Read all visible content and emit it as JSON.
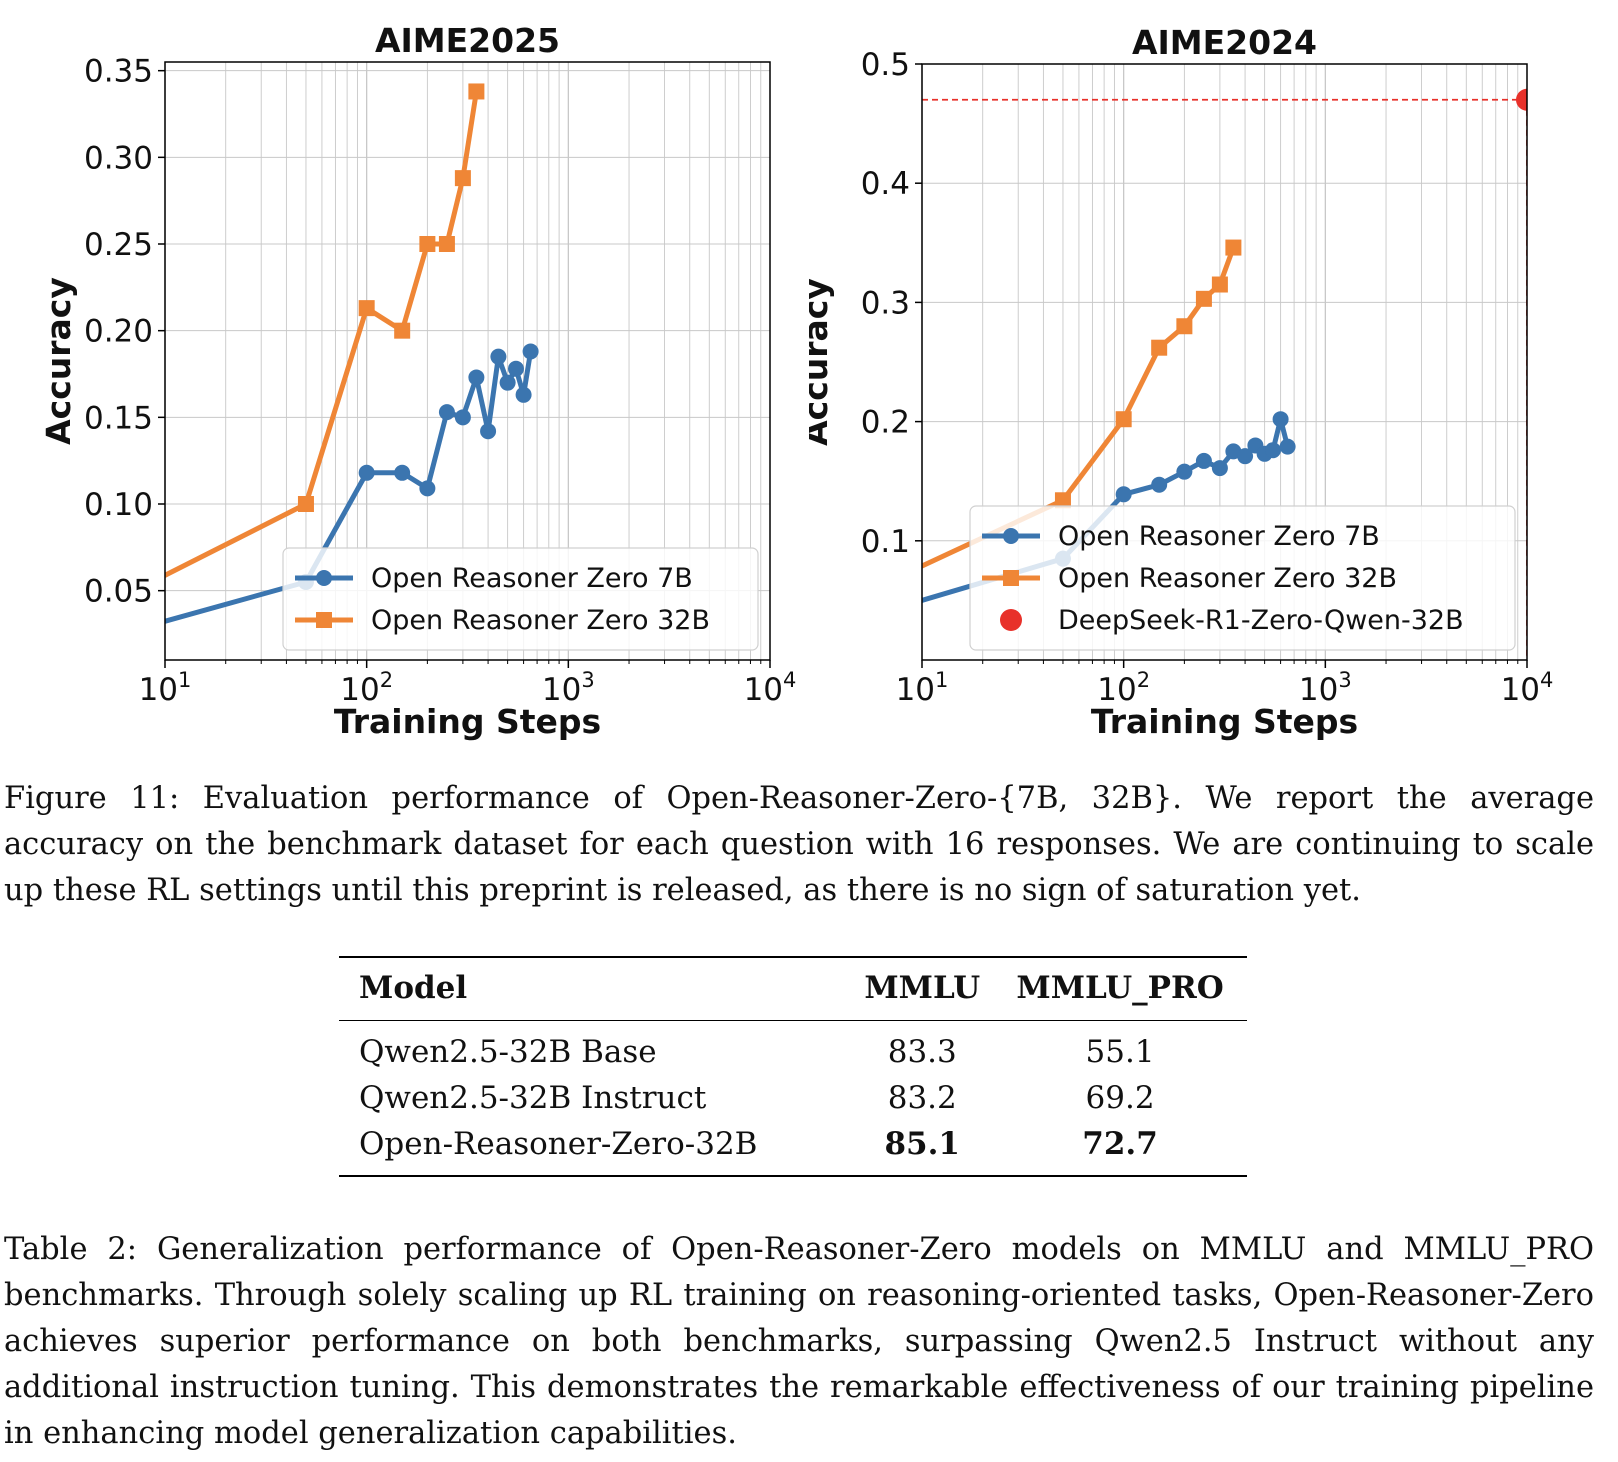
{
  "chart_data": [
    {
      "type": "line",
      "title": "AIME2025",
      "xlabel": "Training Steps",
      "ylabel": "Accuracy",
      "xscale": "log",
      "xlim": [
        10,
        10000
      ],
      "ylim": [
        0.01,
        0.355
      ],
      "yticks": [
        0.05,
        0.1,
        0.15,
        0.2,
        0.25,
        0.3,
        0.35
      ],
      "ytick_labels": [
        "0.05",
        "0.10",
        "0.15",
        "0.20",
        "0.25",
        "0.30",
        "0.35"
      ],
      "xtick_labels": [
        {
          "base": "10",
          "exp": "1"
        },
        {
          "base": "10",
          "exp": "2"
        },
        {
          "base": "10",
          "exp": "3"
        },
        {
          "base": "10",
          "exp": "4"
        }
      ],
      "grid": true,
      "legend_position": "lower-right",
      "series": [
        {
          "name": "Open Reasoner Zero 7B",
          "color": "#3b75af",
          "marker": "circle",
          "x": [
            1,
            50,
            100,
            150,
            200,
            250,
            300,
            350,
            400,
            450,
            500,
            550,
            600,
            650
          ],
          "y": [
            0.0,
            0.055,
            0.118,
            0.118,
            0.109,
            0.153,
            0.15,
            0.173,
            0.142,
            0.185,
            0.17,
            0.178,
            0.163,
            0.188
          ]
        },
        {
          "name": "Open Reasoner Zero 32B",
          "color": "#ef8636",
          "marker": "square",
          "x": [
            1,
            50,
            100,
            150,
            200,
            250,
            300,
            350
          ],
          "y": [
            0.0,
            0.1,
            0.213,
            0.2,
            0.25,
            0.25,
            0.288,
            0.338
          ]
        }
      ]
    },
    {
      "type": "line",
      "title": "AIME2024",
      "xlabel": "Training Steps",
      "ylabel": "Accuracy",
      "xscale": "log",
      "xlim": [
        10,
        10000
      ],
      "ylim": [
        0.0,
        0.5
      ],
      "yticks": [
        0.1,
        0.2,
        0.3,
        0.4,
        0.5
      ],
      "ytick_labels": [
        "0.1",
        "0.2",
        "0.3",
        "0.4",
        "0.5"
      ],
      "xtick_labels": [
        {
          "base": "10",
          "exp": "1"
        },
        {
          "base": "10",
          "exp": "2"
        },
        {
          "base": "10",
          "exp": "3"
        },
        {
          "base": "10",
          "exp": "4"
        }
      ],
      "grid": true,
      "legend_position": "lower-right",
      "series": [
        {
          "name": "Open Reasoner Zero 7B",
          "color": "#3b75af",
          "marker": "circle",
          "x": [
            1,
            50,
            100,
            150,
            200,
            250,
            300,
            350,
            400,
            450,
            500,
            550,
            600,
            650
          ],
          "y": [
            0.0,
            0.085,
            0.139,
            0.147,
            0.158,
            0.167,
            0.161,
            0.175,
            0.171,
            0.18,
            0.173,
            0.176,
            0.202,
            0.179
          ]
        },
        {
          "name": "Open Reasoner Zero 32B",
          "color": "#ef8636",
          "marker": "square",
          "x": [
            1,
            50,
            100,
            150,
            200,
            250,
            300,
            350
          ],
          "y": [
            0.0,
            0.134,
            0.202,
            0.262,
            0.28,
            0.303,
            0.315,
            0.346
          ]
        },
        {
          "name": "DeepSeek-R1-Zero-Qwen-32B",
          "color": "#e8312a",
          "marker": "circle",
          "reference_lines": true,
          "x": [
            10000
          ],
          "y": [
            0.47
          ]
        }
      ]
    }
  ],
  "figure_caption": "Figure 11: Evaluation performance of Open-Reasoner-Zero-{7B, 32B}. We report the average accuracy on the benchmark dataset for each question with 16 responses. We are continuing to scale up these RL settings until this preprint is released, as there is no sign of saturation yet.",
  "table": {
    "headers": [
      "Model",
      "MMLU",
      "MMLU_PRO"
    ],
    "rows": [
      {
        "model": "Qwen2.5-32B Base",
        "mmlu": "83.3",
        "mmlu_pro": "55.1"
      },
      {
        "model": "Qwen2.5-32B Instruct",
        "mmlu": "83.2",
        "mmlu_pro": "69.2"
      },
      {
        "model": "Open-Reasoner-Zero-32B",
        "mmlu": "85.1",
        "mmlu_pro": "72.7"
      }
    ]
  },
  "table_caption": "Table 2:  Generalization performance of Open-Reasoner-Zero models on MMLU and MMLU_PRO benchmarks. Through solely scaling up RL training on reasoning-oriented tasks, Open-Reasoner-Zero achieves superior performance on both benchmarks, surpassing Qwen2.5 Instruct without any additional instruction tuning. This demonstrates the remarkable effectiveness of our training pipeline in enhancing model generalization capabilities."
}
